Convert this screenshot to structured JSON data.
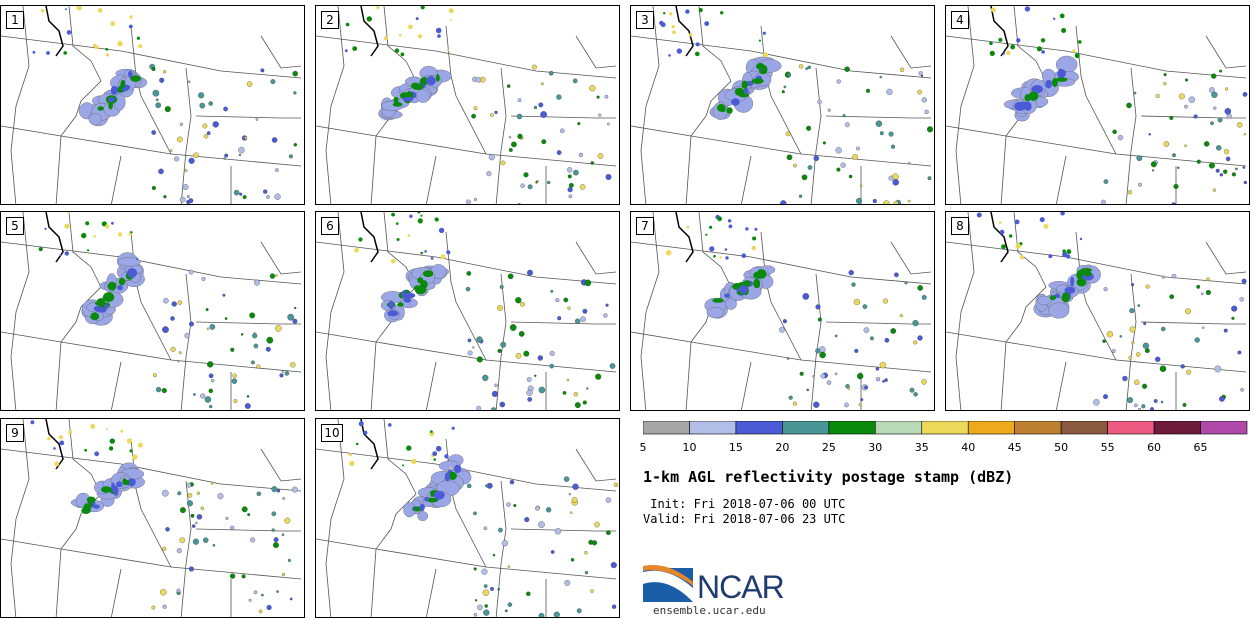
{
  "panels": [
    {
      "label": "1"
    },
    {
      "label": "2"
    },
    {
      "label": "3"
    },
    {
      "label": "4"
    },
    {
      "label": "5"
    },
    {
      "label": "6"
    },
    {
      "label": "7"
    },
    {
      "label": "8"
    },
    {
      "label": "9"
    },
    {
      "label": "10"
    }
  ],
  "colorbar": {
    "ticks": [
      "5",
      "10",
      "15",
      "20",
      "25",
      "30",
      "35",
      "40",
      "45",
      "50",
      "55",
      "60",
      "65"
    ],
    "colors": [
      "#a6a6a6",
      "#b2bde8",
      "#4b5bd6",
      "#4a9595",
      "#0a8a0a",
      "#b9d9b9",
      "#ecd95a",
      "#eeaa1e",
      "#bd8030",
      "#8a5a40",
      "#ef5a82",
      "#6e1a3a",
      "#b04aaa"
    ]
  },
  "title": "1-km AGL reflectivity postage stamp (dBZ)",
  "init": " Init: Fri 2018-07-06 00 UTC",
  "valid": "Valid: Fri 2018-07-06 23 UTC",
  "logo": {
    "text": "NCAR",
    "site": "ensemble.ucar.edu"
  }
}
